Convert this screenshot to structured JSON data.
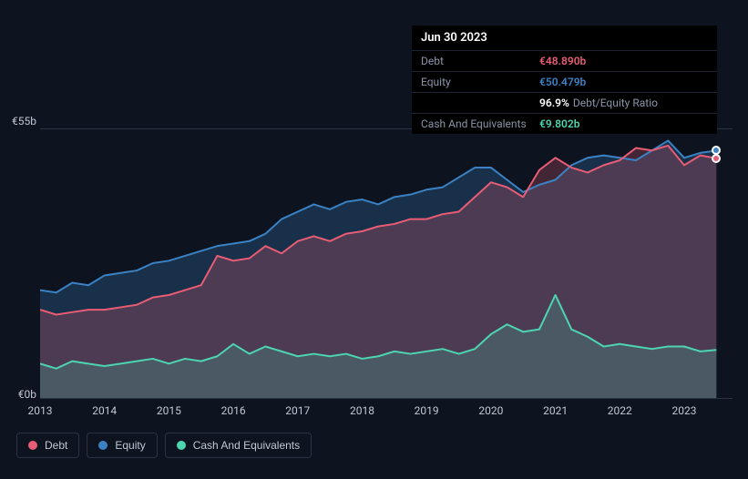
{
  "chart": {
    "background_color": "#0d1420",
    "grid_color": "#2a3344",
    "text_color": "#c0c8d4",
    "font_size": 12,
    "y_axis": {
      "min": 0,
      "max": 55,
      "labels": [
        "€55b",
        "€0b"
      ]
    },
    "x_axis": {
      "min": 2013,
      "max": 2023.75,
      "ticks": [
        2013,
        2014,
        2015,
        2016,
        2017,
        2018,
        2019,
        2020,
        2021,
        2022,
        2023
      ],
      "labels": [
        "2013",
        "2014",
        "2015",
        "2016",
        "2017",
        "2018",
        "2019",
        "2020",
        "2021",
        "2022",
        "2023"
      ]
    },
    "series": [
      {
        "name": "Debt",
        "color": "#e85d75",
        "fill_opacity": 0.25,
        "line_width": 2,
        "data": [
          [
            2013.0,
            18
          ],
          [
            2013.25,
            17
          ],
          [
            2013.5,
            17.5
          ],
          [
            2013.75,
            18
          ],
          [
            2014.0,
            18
          ],
          [
            2014.25,
            18.5
          ],
          [
            2014.5,
            19
          ],
          [
            2014.75,
            20.5
          ],
          [
            2015.0,
            21
          ],
          [
            2015.25,
            22
          ],
          [
            2015.5,
            23
          ],
          [
            2015.75,
            29
          ],
          [
            2016.0,
            28
          ],
          [
            2016.25,
            28.5
          ],
          [
            2016.5,
            31
          ],
          [
            2016.75,
            29.5
          ],
          [
            2017.0,
            32
          ],
          [
            2017.25,
            33
          ],
          [
            2017.5,
            32
          ],
          [
            2017.75,
            33.5
          ],
          [
            2018.0,
            34
          ],
          [
            2018.25,
            35
          ],
          [
            2018.5,
            35.5
          ],
          [
            2018.75,
            36.5
          ],
          [
            2019.0,
            36.5
          ],
          [
            2019.25,
            37.5
          ],
          [
            2019.5,
            38
          ],
          [
            2019.75,
            41
          ],
          [
            2020.0,
            44
          ],
          [
            2020.25,
            43
          ],
          [
            2020.5,
            41
          ],
          [
            2020.75,
            46.5
          ],
          [
            2021.0,
            49
          ],
          [
            2021.25,
            47
          ],
          [
            2021.5,
            46
          ],
          [
            2021.75,
            47.5
          ],
          [
            2022.0,
            48.5
          ],
          [
            2022.25,
            51
          ],
          [
            2022.5,
            50.5
          ],
          [
            2022.75,
            51.5
          ],
          [
            2023.0,
            47.5
          ],
          [
            2023.25,
            49.5
          ],
          [
            2023.5,
            48.89
          ]
        ]
      },
      {
        "name": "Equity",
        "color": "#3b82c4",
        "fill_opacity": 0.25,
        "line_width": 2,
        "data": [
          [
            2013.0,
            22
          ],
          [
            2013.25,
            21.5
          ],
          [
            2013.5,
            23.5
          ],
          [
            2013.75,
            23
          ],
          [
            2014.0,
            25
          ],
          [
            2014.25,
            25.5
          ],
          [
            2014.5,
            26
          ],
          [
            2014.75,
            27.5
          ],
          [
            2015.0,
            28
          ],
          [
            2015.25,
            29
          ],
          [
            2015.5,
            30
          ],
          [
            2015.75,
            31
          ],
          [
            2016.0,
            31.5
          ],
          [
            2016.25,
            32
          ],
          [
            2016.5,
            33.5
          ],
          [
            2016.75,
            36.5
          ],
          [
            2017.0,
            38
          ],
          [
            2017.25,
            39.5
          ],
          [
            2017.5,
            38.5
          ],
          [
            2017.75,
            40
          ],
          [
            2018.0,
            40.5
          ],
          [
            2018.25,
            39.5
          ],
          [
            2018.5,
            41
          ],
          [
            2018.75,
            41.5
          ],
          [
            2019.0,
            42.5
          ],
          [
            2019.25,
            43
          ],
          [
            2019.5,
            45
          ],
          [
            2019.75,
            47
          ],
          [
            2020.0,
            47
          ],
          [
            2020.25,
            44.5
          ],
          [
            2020.5,
            42
          ],
          [
            2020.75,
            43.5
          ],
          [
            2021.0,
            44.5
          ],
          [
            2021.25,
            47.5
          ],
          [
            2021.5,
            49
          ],
          [
            2021.75,
            49.5
          ],
          [
            2022.0,
            49
          ],
          [
            2022.25,
            48.5
          ],
          [
            2022.5,
            50.5
          ],
          [
            2022.75,
            52.5
          ],
          [
            2023.0,
            49
          ],
          [
            2023.25,
            50
          ],
          [
            2023.5,
            50.479
          ]
        ]
      },
      {
        "name": "Cash And Equivalents",
        "color": "#4dd4b0",
        "fill_opacity": 0.2,
        "line_width": 2,
        "data": [
          [
            2013.0,
            7
          ],
          [
            2013.25,
            6
          ],
          [
            2013.5,
            7.5
          ],
          [
            2013.75,
            7
          ],
          [
            2014.0,
            6.5
          ],
          [
            2014.25,
            7
          ],
          [
            2014.5,
            7.5
          ],
          [
            2014.75,
            8
          ],
          [
            2015.0,
            7
          ],
          [
            2015.25,
            8
          ],
          [
            2015.5,
            7.5
          ],
          [
            2015.75,
            8.5
          ],
          [
            2016.0,
            11
          ],
          [
            2016.25,
            9
          ],
          [
            2016.5,
            10.5
          ],
          [
            2016.75,
            9.5
          ],
          [
            2017.0,
            8.5
          ],
          [
            2017.25,
            9
          ],
          [
            2017.5,
            8.5
          ],
          [
            2017.75,
            9
          ],
          [
            2018.0,
            8
          ],
          [
            2018.25,
            8.5
          ],
          [
            2018.5,
            9.5
          ],
          [
            2018.75,
            9
          ],
          [
            2019.0,
            9.5
          ],
          [
            2019.25,
            10
          ],
          [
            2019.5,
            9
          ],
          [
            2019.75,
            10
          ],
          [
            2020.0,
            13
          ],
          [
            2020.25,
            15
          ],
          [
            2020.5,
            13.5
          ],
          [
            2020.75,
            14
          ],
          [
            2021.0,
            21
          ],
          [
            2021.25,
            14
          ],
          [
            2021.5,
            12.5
          ],
          [
            2021.75,
            10.5
          ],
          [
            2022.0,
            11
          ],
          [
            2022.25,
            10.5
          ],
          [
            2022.5,
            10
          ],
          [
            2022.75,
            10.5
          ],
          [
            2023.0,
            10.5
          ],
          [
            2023.25,
            9.5
          ],
          [
            2023.5,
            9.802
          ]
        ]
      }
    ],
    "endpoint_markers": [
      {
        "series": "Debt",
        "x": 2023.5,
        "fill": "#e85d75"
      },
      {
        "series": "Equity",
        "x": 2023.5,
        "fill": "#3b82c4"
      }
    ]
  },
  "tooltip": {
    "date": "Jun 30 2023",
    "rows": [
      {
        "label": "Debt",
        "value": "€48.890b",
        "color": "#e85d75"
      },
      {
        "label": "Equity",
        "value": "€50.479b",
        "color": "#3b82c4"
      }
    ],
    "ratio": {
      "value": "96.9%",
      "suffix": "Debt/Equity Ratio"
    },
    "cash_row": {
      "label": "Cash And Equivalents",
      "value": "€9.802b",
      "color": "#4dd4b0"
    }
  },
  "legend": {
    "items": [
      {
        "label": "Debt",
        "color": "#e85d75"
      },
      {
        "label": "Equity",
        "color": "#3b82c4"
      },
      {
        "label": "Cash And Equivalents",
        "color": "#4dd4b0"
      }
    ]
  }
}
